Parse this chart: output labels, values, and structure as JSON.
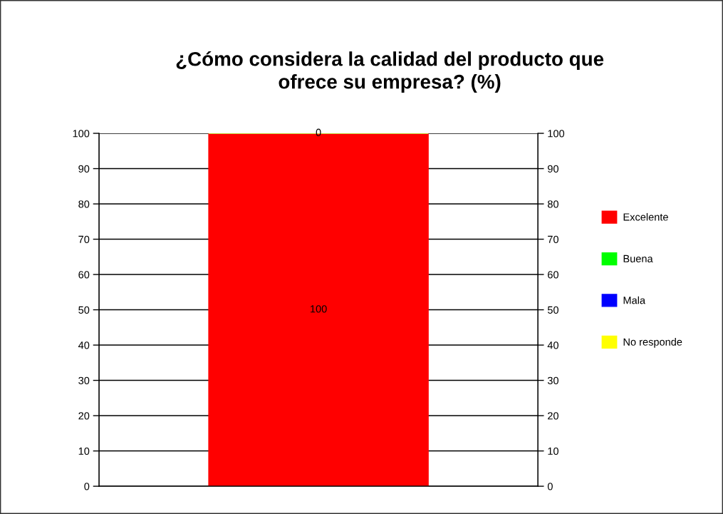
{
  "chart_data": {
    "type": "bar",
    "title": "¿Cómo considera la calidad del producto que\nofrece su empresa? (%)",
    "categories": [
      null
    ],
    "stacked": true,
    "series": [
      {
        "name": "Excelente",
        "color": "#ff0000",
        "values": [
          100
        ],
        "value_labels": [
          "100"
        ]
      },
      {
        "name": "Buena",
        "color": "#00ff00",
        "values": [
          0
        ],
        "value_labels": [
          null
        ]
      },
      {
        "name": "Mala",
        "color": "#0000ff",
        "values": [
          0
        ],
        "value_labels": [
          null
        ]
      },
      {
        "name": "No responde",
        "color": "#ffff00",
        "values": [
          0
        ],
        "value_labels": [
          "0"
        ]
      }
    ],
    "ylim": [
      0,
      100
    ],
    "yticks": [
      0,
      10,
      20,
      30,
      40,
      50,
      60,
      70,
      80,
      90,
      100
    ],
    "y2lim": [
      0,
      100
    ],
    "y2ticks": [
      0,
      10,
      20,
      30,
      40,
      50,
      60,
      70,
      80,
      90,
      100
    ],
    "grid": "y",
    "legend": "right"
  }
}
